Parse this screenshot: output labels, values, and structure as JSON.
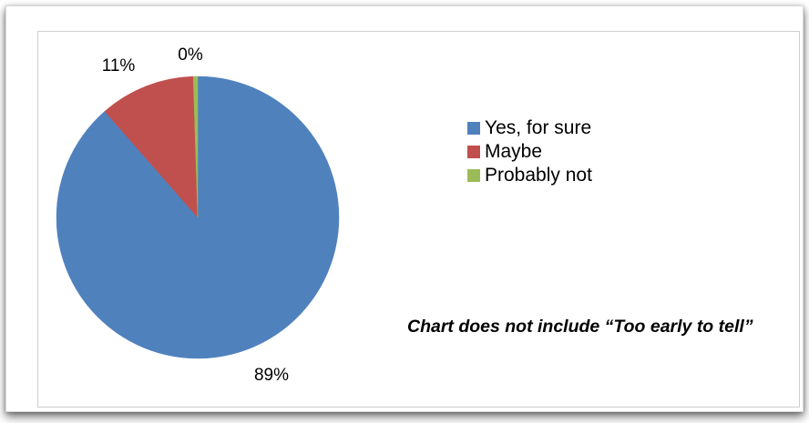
{
  "chart_data": {
    "type": "pie",
    "slices": [
      {
        "label": "Yes, for sure",
        "value": 89,
        "display": "89%",
        "color": "#4F81BD"
      },
      {
        "label": "Maybe",
        "value": 11,
        "display": "11%",
        "color": "#C0504D"
      },
      {
        "label": "Probably not",
        "value": 0.5,
        "display": "0%",
        "color": "#9BBB59"
      }
    ],
    "legend_position": "right",
    "note": "Chart does not include “Too early to tell”"
  }
}
